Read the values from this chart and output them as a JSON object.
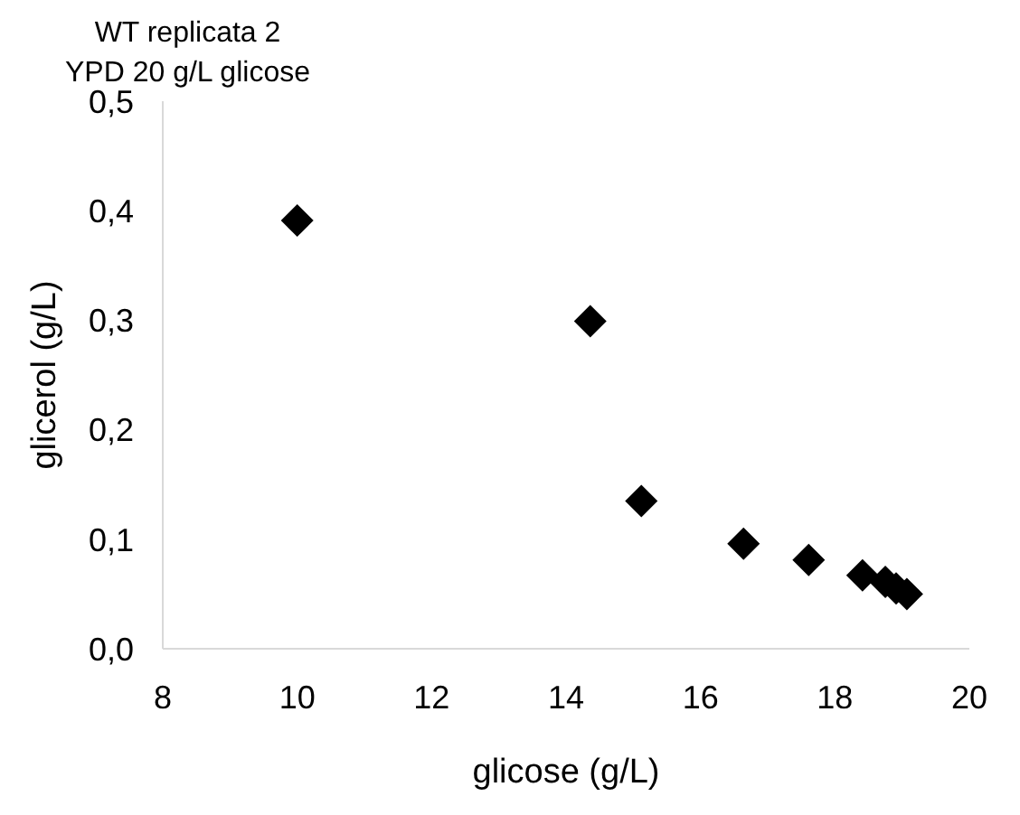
{
  "chart_data": {
    "type": "scatter",
    "title": "WT replicata 2",
    "subtitle": "YPD 20 g/L glicose",
    "xlabel": "glicose (g/L)",
    "ylabel": "glicerol (g/L)",
    "x": [
      10.0,
      14.36,
      15.12,
      16.64,
      17.61,
      18.41,
      18.75,
      18.91,
      19.07
    ],
    "values": [
      0.391,
      0.299,
      0.135,
      0.096,
      0.081,
      0.067,
      0.061,
      0.055,
      0.05
    ],
    "color": "#000000",
    "marker": "diamond",
    "grid": false,
    "legend": false,
    "xlim": [
      8,
      20
    ],
    "xticks": [
      8,
      10,
      12,
      14,
      16,
      18,
      20
    ],
    "ylim": [
      0,
      0.5
    ],
    "yticks": [
      {
        "value": 0,
        "label": "0,0"
      },
      {
        "value": 0.1,
        "label": "0,1"
      },
      {
        "value": 0.2,
        "label": "0,2"
      },
      {
        "value": 0.3,
        "label": "0,3"
      },
      {
        "value": 0.4,
        "label": "0,4"
      },
      {
        "value": 0.5,
        "label": "0,5"
      }
    ]
  }
}
